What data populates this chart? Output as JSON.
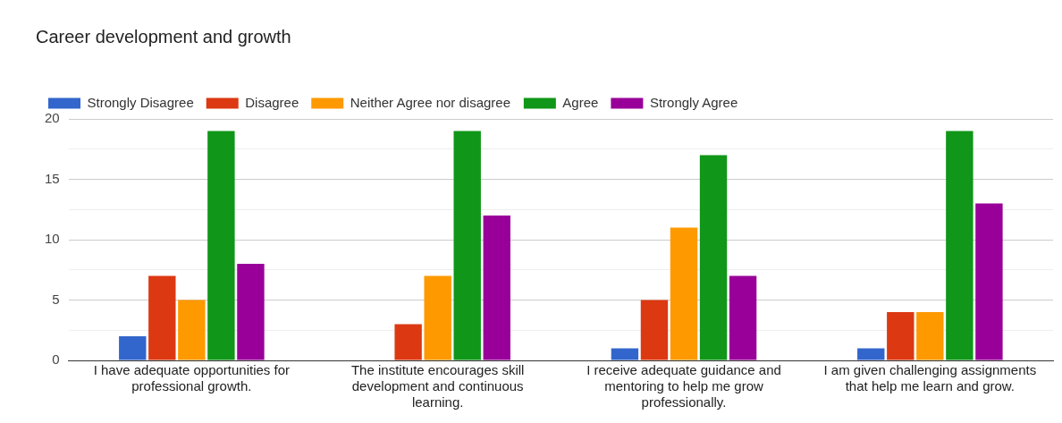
{
  "chart_data": {
    "type": "bar",
    "title": "Career development and growth",
    "categories": [
      "I have adequate opportunities for professional growth.",
      "The institute encourages skill development and continuous learning.",
      "I receive adequate guidance and mentoring to help me grow professionally.",
      "I am given challenging assignments that help me learn and grow."
    ],
    "series": [
      {
        "name": "Strongly Disagree",
        "color": "#3366cc",
        "values": [
          2,
          0,
          1,
          1
        ]
      },
      {
        "name": "Disagree",
        "color": "#dc3912",
        "values": [
          7,
          3,
          5,
          4
        ]
      },
      {
        "name": "Neither Agree nor disagree",
        "color": "#ff9900",
        "values": [
          5,
          7,
          11,
          4
        ]
      },
      {
        "name": "Agree",
        "color": "#109618",
        "values": [
          19,
          19,
          17,
          19
        ]
      },
      {
        "name": "Strongly Agree",
        "color": "#990099",
        "values": [
          8,
          12,
          7,
          13
        ]
      }
    ],
    "ylim": [
      0,
      20
    ],
    "yticks": [
      0,
      {
        "value": 2.5,
        "label": null
      },
      5,
      {
        "value": 7.5,
        "label": null
      },
      10,
      {
        "value": 12.5,
        "label": null
      },
      15,
      {
        "value": 17.5,
        "label": null
      },
      20
    ],
    "grid": "y",
    "legend": "top"
  }
}
